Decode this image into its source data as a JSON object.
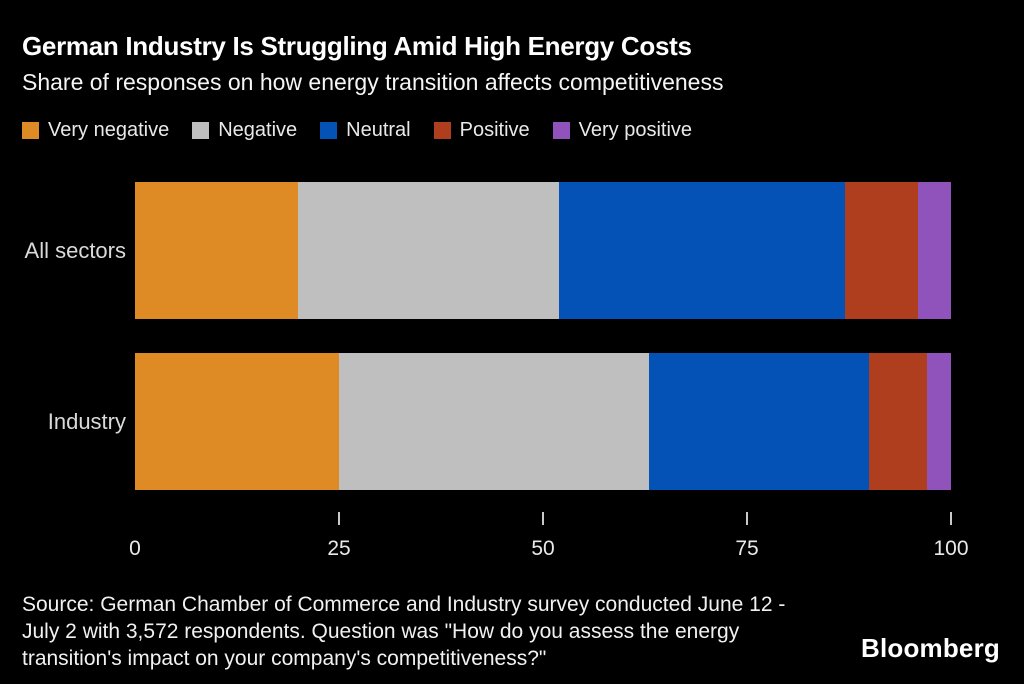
{
  "header": {
    "title": "German Industry Is Struggling Amid High Energy Costs",
    "subtitle": "Share of responses on how energy transition affects competitiveness"
  },
  "colors": {
    "background": "#000000",
    "very_negative": "#DE8B26",
    "negative": "#BFBFBF",
    "neutral": "#0452B6",
    "positive": "#AE3E1E",
    "very_positive": "#9053BC"
  },
  "legend": {
    "items": [
      {
        "label": "Very negative",
        "color": "#DE8B26"
      },
      {
        "label": "Negative",
        "color": "#BFBFBF"
      },
      {
        "label": "Neutral",
        "color": "#0452B6"
      },
      {
        "label": "Positive",
        "color": "#AE3E1E"
      },
      {
        "label": "Very positive",
        "color": "#9053BC"
      }
    ]
  },
  "chart_data": {
    "type": "bar",
    "orientation": "horizontal",
    "stacked": true,
    "unit": "percent",
    "title": "German Industry Is Struggling Amid High Energy Costs",
    "subtitle": "Share of responses on how energy transition affects competitiveness",
    "categories": [
      "All sectors",
      "Industry"
    ],
    "series": [
      {
        "name": "Very negative",
        "color": "#DE8B26",
        "values": [
          20,
          25
        ]
      },
      {
        "name": "Negative",
        "color": "#BFBFBF",
        "values": [
          32,
          38
        ]
      },
      {
        "name": "Neutral",
        "color": "#0452B6",
        "values": [
          35,
          27
        ]
      },
      {
        "name": "Positive",
        "color": "#AE3E1E",
        "values": [
          9,
          7
        ]
      },
      {
        "name": "Very positive",
        "color": "#9053BC",
        "values": [
          4,
          3
        ]
      }
    ],
    "xlim": [
      0,
      100
    ],
    "x_ticks": [
      0,
      25,
      50,
      75,
      100
    ],
    "grid": false,
    "legend_position": "top"
  },
  "footer": {
    "source_lines": [
      "Source: German Chamber of Commerce and Industry survey conducted June 12 -",
      "July 2 with 3,572 respondents. Question was \"How do you assess the energy",
      "transition's impact on your company's competitiveness?\""
    ],
    "brand": "Bloomberg"
  }
}
